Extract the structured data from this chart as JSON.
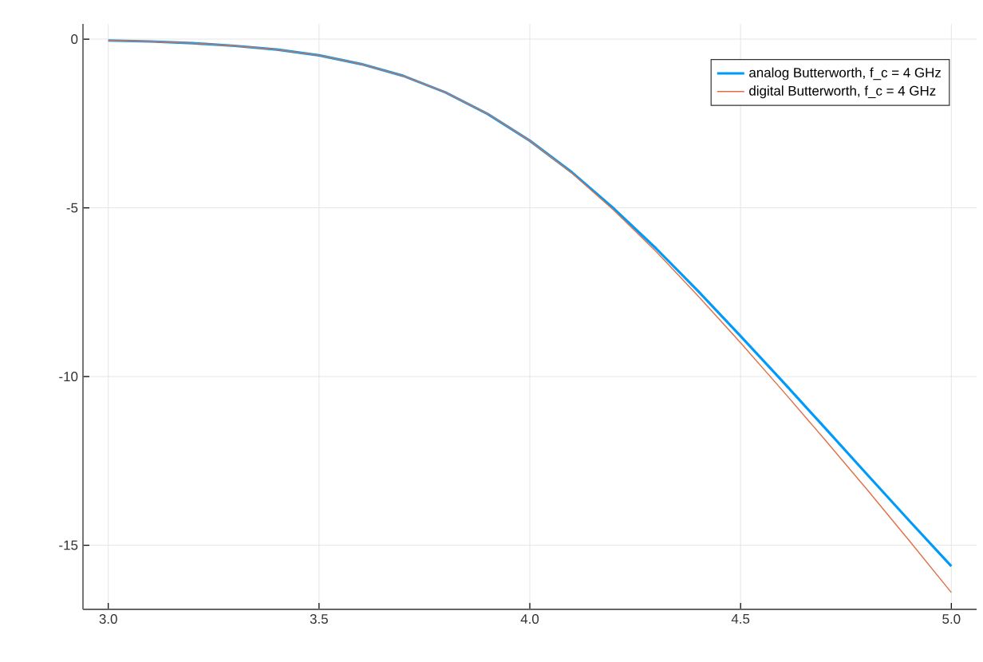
{
  "chart_data": {
    "type": "line",
    "x": [
      3.0,
      3.1,
      3.2,
      3.3,
      3.4,
      3.5,
      3.6,
      3.7,
      3.8,
      3.9,
      4.0,
      4.1,
      4.2,
      4.3,
      4.4,
      4.5,
      4.6,
      4.7,
      4.8,
      4.9,
      5.0
    ],
    "series": [
      {
        "name": "analog Butterworth, f_c = 4 GHz",
        "color": "#009af9",
        "values": [
          -0.04,
          -0.07,
          -0.12,
          -0.2,
          -0.31,
          -0.48,
          -0.74,
          -1.09,
          -1.58,
          -2.22,
          -3.01,
          -3.95,
          -5.03,
          -6.21,
          -7.48,
          -8.8,
          -10.15,
          -11.52,
          -12.9,
          -14.27,
          -15.62
        ]
      },
      {
        "name": "digital Butterworth, f_c = 4 GHz",
        "color": "#e26f46",
        "values": [
          -0.04,
          -0.07,
          -0.12,
          -0.2,
          -0.31,
          -0.48,
          -0.74,
          -1.09,
          -1.58,
          -2.21,
          -3.01,
          -3.97,
          -5.08,
          -6.3,
          -7.62,
          -9.0,
          -10.42,
          -11.87,
          -13.35,
          -14.86,
          -16.4
        ]
      }
    ],
    "xlim": [
      2.94,
      5.06
    ],
    "ylim": [
      -16.9,
      0.45
    ],
    "xticks": [
      {
        "value": 3,
        "label": "3.0"
      },
      {
        "value": 3.5,
        "label": "3.5"
      },
      {
        "value": 4,
        "label": "4.0"
      },
      {
        "value": 4.5,
        "label": "4.5"
      },
      {
        "value": 5,
        "label": "5.0"
      }
    ],
    "yticks": [
      0,
      -5,
      -10,
      -15
    ],
    "grid": true,
    "legend": "top right",
    "marker": "none",
    "line_style": "solid"
  }
}
